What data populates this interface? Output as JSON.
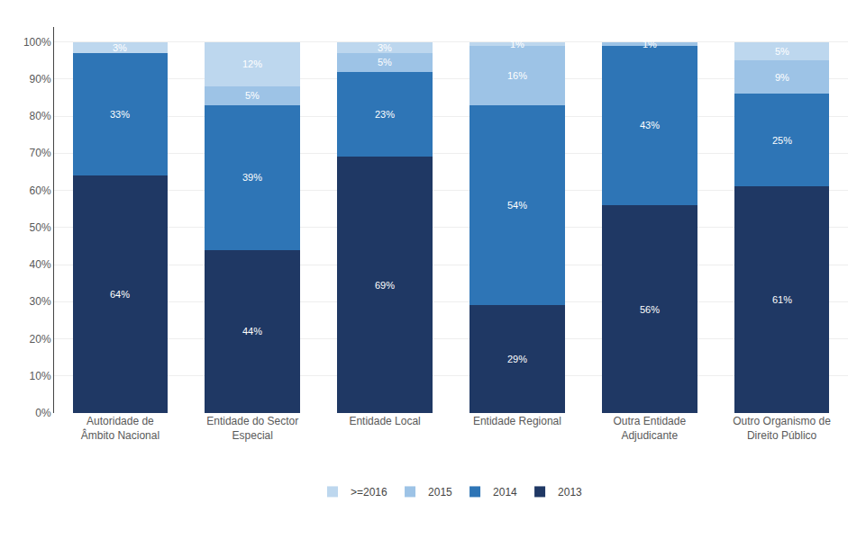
{
  "chart_data": {
    "type": "bar",
    "stacked": true,
    "categories": [
      "Autoridade de Âmbito Nacional",
      "Entidade do Sector Especial",
      "Entidade Local",
      "Entidade Regional",
      "Outra Entidade Adjudicante",
      "Outro Organismo de Direito Público"
    ],
    "series": [
      {
        "name": "2013",
        "color": "#1F3864",
        "values": [
          64,
          44,
          69,
          29,
          56,
          61
        ],
        "value_labels": [
          "64%",
          "44%",
          "69%",
          "29%",
          "56%",
          "61%"
        ]
      },
      {
        "name": "2014",
        "color": "#2E75B6",
        "values": [
          33,
          39,
          23,
          54,
          43,
          25
        ],
        "value_labels": [
          "33%",
          "39%",
          "23%",
          "54%",
          "43%",
          "25%"
        ]
      },
      {
        "name": "2015",
        "color": "#9DC3E6",
        "values": [
          0,
          5,
          5,
          16,
          1,
          9
        ],
        "value_labels": [
          null,
          "5%",
          "5%",
          "16%",
          "1%",
          "9%"
        ]
      },
      {
        "name": ">=2016",
        "color": "#BDD7EE",
        "values": [
          3,
          12,
          3,
          1,
          0,
          5
        ],
        "value_labels": [
          "3%",
          "12%",
          "3%",
          "1%",
          null,
          "5%"
        ]
      }
    ],
    "ylim": [
      0,
      104
    ],
    "yticks": [
      {
        "value": 0,
        "label": "0%"
      },
      {
        "value": 10,
        "label": "10%"
      },
      {
        "value": 20,
        "label": "20%"
      },
      {
        "value": 30,
        "label": "30%"
      },
      {
        "value": 40,
        "label": "40%"
      },
      {
        "value": 50,
        "label": "50%"
      },
      {
        "value": 60,
        "label": "60%"
      },
      {
        "value": 70,
        "label": "70%"
      },
      {
        "value": 80,
        "label": "80%"
      },
      {
        "value": 90,
        "label": "90%"
      },
      {
        "value": 100,
        "label": "100%"
      }
    ],
    "grid": true,
    "legend": "bottom",
    "data_labels": true
  }
}
